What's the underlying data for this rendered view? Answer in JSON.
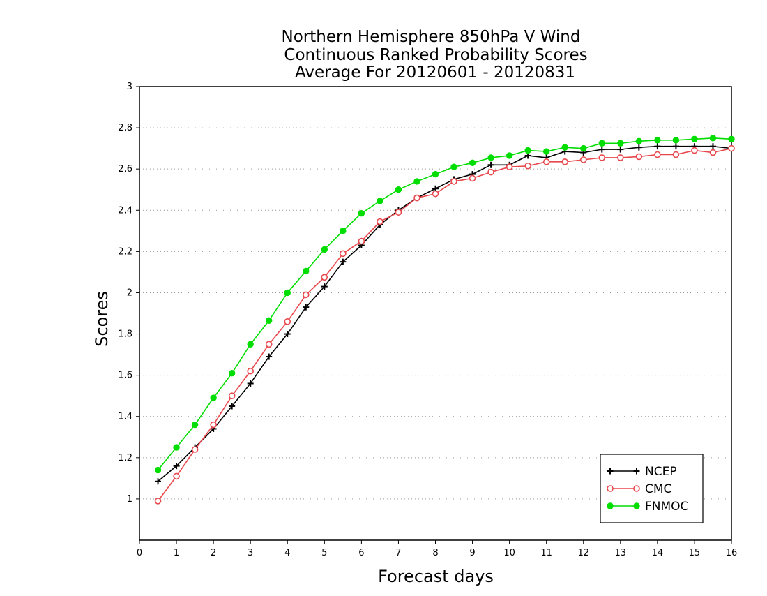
{
  "chart_data": {
    "type": "line",
    "title_lines": [
      "Northern Hemisphere 850hPa V Wind",
      "Continuous Ranked Probability Scores",
      "Average For 20120601 - 20120831"
    ],
    "xlabel": "Forecast days",
    "ylabel": "Scores",
    "xlim": [
      0,
      16
    ],
    "ylim": [
      0.8,
      3.0
    ],
    "x_ticks": [
      "0",
      "1",
      "2",
      "3",
      "4",
      "5",
      "6",
      "7",
      "8",
      "9",
      "10",
      "11",
      "12",
      "13",
      "14",
      "15",
      "16"
    ],
    "y_ticks": [
      "1",
      "1.2",
      "1.4",
      "1.6",
      "1.8",
      "2",
      "2.2",
      "2.4",
      "2.6",
      "2.8",
      "3"
    ],
    "grid": "horizontal dotted",
    "legend_position": "bottom-right",
    "x": [
      0.5,
      1,
      1.5,
      2,
      2.5,
      3,
      3.5,
      4,
      4.5,
      5,
      5.5,
      6,
      6.5,
      7,
      7.5,
      8,
      8.5,
      9,
      9.5,
      10,
      10.5,
      11,
      11.5,
      12,
      12.5,
      13,
      13.5,
      14,
      14.5,
      15,
      15.5,
      16
    ],
    "series": [
      {
        "name": "NCEP",
        "color": "#000000",
        "marker": "plus",
        "values": [
          1.085,
          1.16,
          1.25,
          1.34,
          1.45,
          1.56,
          1.69,
          1.8,
          1.93,
          2.03,
          2.15,
          2.23,
          2.33,
          2.4,
          2.46,
          2.505,
          2.55,
          2.575,
          2.62,
          2.62,
          2.665,
          2.655,
          2.685,
          2.68,
          2.695,
          2.695,
          2.705,
          2.71,
          2.71,
          2.71,
          2.71,
          2.7
        ]
      },
      {
        "name": "CMC",
        "color": "#e8474c",
        "marker": "open-circle",
        "values": [
          0.99,
          1.11,
          1.24,
          1.36,
          1.5,
          1.62,
          1.75,
          1.86,
          1.99,
          2.075,
          2.19,
          2.25,
          2.345,
          2.39,
          2.46,
          2.48,
          2.54,
          2.555,
          2.585,
          2.61,
          2.615,
          2.635,
          2.635,
          2.645,
          2.655,
          2.655,
          2.66,
          2.67,
          2.67,
          2.69,
          2.68,
          2.7
        ]
      },
      {
        "name": "FNMOC",
        "color": "#00dd00",
        "marker": "filled-circle",
        "values": [
          1.14,
          1.25,
          1.36,
          1.49,
          1.61,
          1.75,
          1.865,
          2.0,
          2.105,
          2.21,
          2.3,
          2.385,
          2.445,
          2.5,
          2.54,
          2.575,
          2.61,
          2.63,
          2.655,
          2.665,
          2.69,
          2.685,
          2.705,
          2.7,
          2.725,
          2.725,
          2.735,
          2.74,
          2.74,
          2.745,
          2.75,
          2.745
        ]
      }
    ]
  }
}
